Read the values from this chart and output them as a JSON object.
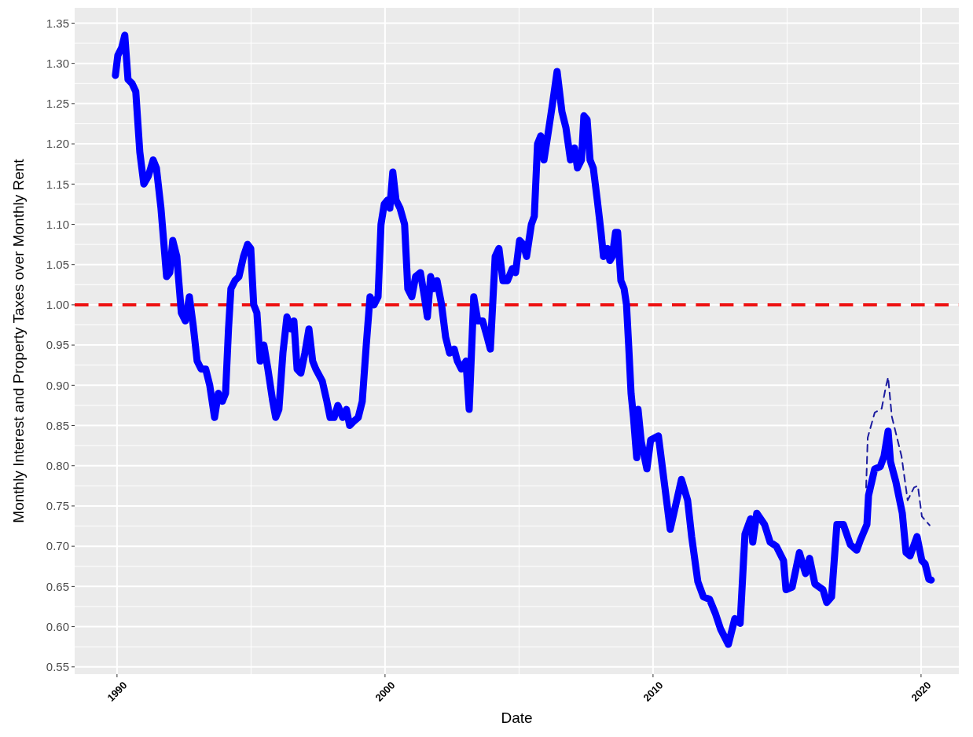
{
  "chart_data": {
    "type": "line",
    "xlabel": "Date",
    "ylabel": "Monthly Interest and Property Taxes over Monthly Rent",
    "xlim": [
      1988.42,
      2021.41
    ],
    "ylim": [
      0.541,
      1.369
    ],
    "xticks": [
      1990,
      2000,
      2010,
      2020
    ],
    "yticks": [
      {
        "value": 0.55,
        "label": "0.55"
      },
      {
        "value": 0.6,
        "label": "0.60"
      },
      {
        "value": 0.65,
        "label": "0.65"
      },
      {
        "value": 0.7,
        "label": "0.70"
      },
      {
        "value": 0.75,
        "label": "0.75"
      },
      {
        "value": 0.8,
        "label": "0.80"
      },
      {
        "value": 0.85,
        "label": "0.85"
      },
      {
        "value": 0.9,
        "label": "0.90"
      },
      {
        "value": 0.95,
        "label": "0.95"
      },
      {
        "value": 1.0,
        "label": "1.00"
      },
      {
        "value": 1.05,
        "label": "1.05"
      },
      {
        "value": 1.1,
        "label": "1.10"
      },
      {
        "value": 1.15,
        "label": "1.15"
      },
      {
        "value": 1.2,
        "label": "1.20"
      },
      {
        "value": 1.25,
        "label": "1.25"
      },
      {
        "value": 1.3,
        "label": "1.30"
      },
      {
        "value": 1.35,
        "label": "1.35"
      }
    ],
    "grid": true,
    "ref_lines": [
      {
        "axis": "y",
        "value": 1.0,
        "color": "#ee1111",
        "line_style": "dashed"
      }
    ],
    "series": [
      {
        "color": "#0000ff",
        "line_style": "solid",
        "x": [
          1989.94,
          1990.03,
          1990.18,
          1990.29,
          1990.41,
          1990.56,
          1990.7,
          1990.85,
          1991.0,
          1991.17,
          1991.35,
          1991.47,
          1991.64,
          1991.85,
          1991.97,
          1992.08,
          1992.23,
          1992.4,
          1992.55,
          1992.7,
          1992.84,
          1992.99,
          1993.14,
          1993.31,
          1993.46,
          1993.64,
          1993.78,
          1993.93,
          1994.05,
          1994.16,
          1994.25,
          1994.4,
          1994.55,
          1994.72,
          1994.87,
          1994.99,
          1995.1,
          1995.22,
          1995.34,
          1995.48,
          1995.63,
          1995.81,
          1995.92,
          1996.04,
          1996.19,
          1996.34,
          1996.48,
          1996.6,
          1996.72,
          1996.86,
          1997.01,
          1997.16,
          1997.3,
          1997.42,
          1997.66,
          1997.83,
          1997.95,
          1998.1,
          1998.24,
          1998.42,
          1998.56,
          1998.68,
          1998.83,
          1999.0,
          1999.15,
          1999.3,
          1999.44,
          1999.59,
          1999.74,
          1999.85,
          1999.97,
          2000.09,
          2000.18,
          2000.29,
          2000.41,
          2000.56,
          2000.73,
          2000.85,
          2001.0,
          2001.14,
          2001.32,
          2001.47,
          2001.58,
          2001.7,
          2001.82,
          2001.94,
          2002.11,
          2002.26,
          2002.41,
          2002.58,
          2002.7,
          2002.85,
          2003.02,
          2003.14,
          2003.31,
          2003.46,
          2003.64,
          2003.81,
          2003.93,
          2004.11,
          2004.25,
          2004.4,
          2004.57,
          2004.75,
          2004.87,
          2005.02,
          2005.16,
          2005.28,
          2005.46,
          2005.57,
          2005.69,
          2005.81,
          2005.93,
          2006.07,
          2006.25,
          2006.42,
          2006.6,
          2006.75,
          2006.92,
          2007.07,
          2007.18,
          2007.33,
          2007.42,
          2007.54,
          2007.65,
          2007.77,
          2007.92,
          2008.06,
          2008.15,
          2008.3,
          2008.39,
          2008.48,
          2008.6,
          2008.68,
          2008.8,
          2008.92,
          2009.01,
          2009.09,
          2009.18,
          2009.27,
          2009.39,
          2009.44,
          2009.56,
          2009.77,
          2009.91,
          2010.2,
          2010.64,
          2011.06,
          2011.29,
          2011.44,
          2011.67,
          2011.88,
          2012.11,
          2012.32,
          2012.52,
          2012.81,
          2013.05,
          2013.25,
          2013.43,
          2013.64,
          2013.72,
          2013.87,
          2014.16,
          2014.37,
          2014.6,
          2014.87,
          2014.96,
          2015.19,
          2015.46,
          2015.69,
          2015.84,
          2016.04,
          2016.34,
          2016.48,
          2016.66,
          2016.86,
          2017.1,
          2017.36,
          2017.6,
          2017.74,
          2017.98,
          2018.04,
          2018.27,
          2018.48,
          2018.62,
          2018.77,
          2018.86,
          2019.06,
          2019.3,
          2019.44,
          2019.59,
          2019.85,
          2020.03,
          2020.15,
          2020.29,
          2020.38
        ],
        "values": [
          1.285,
          1.31,
          1.32,
          1.335,
          1.28,
          1.275,
          1.265,
          1.19,
          1.15,
          1.16,
          1.18,
          1.17,
          1.12,
          1.035,
          1.04,
          1.08,
          1.06,
          0.99,
          0.98,
          1.01,
          0.975,
          0.93,
          0.92,
          0.92,
          0.9,
          0.86,
          0.89,
          0.88,
          0.89,
          0.97,
          1.02,
          1.03,
          1.035,
          1.06,
          1.075,
          1.07,
          1.0,
          0.99,
          0.93,
          0.95,
          0.92,
          0.88,
          0.86,
          0.87,
          0.94,
          0.985,
          0.97,
          0.98,
          0.92,
          0.915,
          0.94,
          0.97,
          0.93,
          0.92,
          0.905,
          0.88,
          0.86,
          0.86,
          0.875,
          0.86,
          0.87,
          0.85,
          0.855,
          0.86,
          0.88,
          0.95,
          1.01,
          1.0,
          1.01,
          1.1,
          1.125,
          1.13,
          1.12,
          1.165,
          1.13,
          1.12,
          1.1,
          1.02,
          1.01,
          1.035,
          1.04,
          1.01,
          0.985,
          1.035,
          1.02,
          1.03,
          1.0,
          0.96,
          0.94,
          0.945,
          0.93,
          0.92,
          0.93,
          0.87,
          1.01,
          0.98,
          0.98,
          0.96,
          0.945,
          1.06,
          1.07,
          1.03,
          1.03,
          1.045,
          1.04,
          1.08,
          1.075,
          1.06,
          1.1,
          1.11,
          1.2,
          1.21,
          1.18,
          1.21,
          1.25,
          1.29,
          1.24,
          1.22,
          1.18,
          1.195,
          1.17,
          1.18,
          1.235,
          1.23,
          1.18,
          1.17,
          1.13,
          1.09,
          1.06,
          1.07,
          1.055,
          1.06,
          1.09,
          1.09,
          1.03,
          1.02,
          1.0,
          0.95,
          0.89,
          0.86,
          0.81,
          0.87,
          0.83,
          0.796,
          0.832,
          0.837,
          0.721,
          0.783,
          0.757,
          0.712,
          0.656,
          0.637,
          0.634,
          0.617,
          0.597,
          0.578,
          0.61,
          0.604,
          0.715,
          0.734,
          0.705,
          0.741,
          0.727,
          0.705,
          0.7,
          0.682,
          0.646,
          0.649,
          0.692,
          0.666,
          0.685,
          0.653,
          0.646,
          0.63,
          0.637,
          0.727,
          0.727,
          0.702,
          0.695,
          0.708,
          0.727,
          0.763,
          0.796,
          0.799,
          0.812,
          0.843,
          0.805,
          0.78,
          0.741,
          0.692,
          0.688,
          0.712,
          0.682,
          0.678,
          0.659,
          0.658
        ]
      },
      {
        "color": "#1c1ca0",
        "line_style": "dashed",
        "x": [
          2017.95,
          2018.01,
          2018.27,
          2018.53,
          2018.68,
          2018.77,
          2018.91,
          2019.27,
          2019.5,
          2019.74,
          2019.88,
          2020.03,
          2020.32
        ],
        "values": [
          0.773,
          0.835,
          0.866,
          0.871,
          0.897,
          0.91,
          0.861,
          0.812,
          0.757,
          0.773,
          0.775,
          0.737,
          0.726
        ]
      }
    ]
  }
}
